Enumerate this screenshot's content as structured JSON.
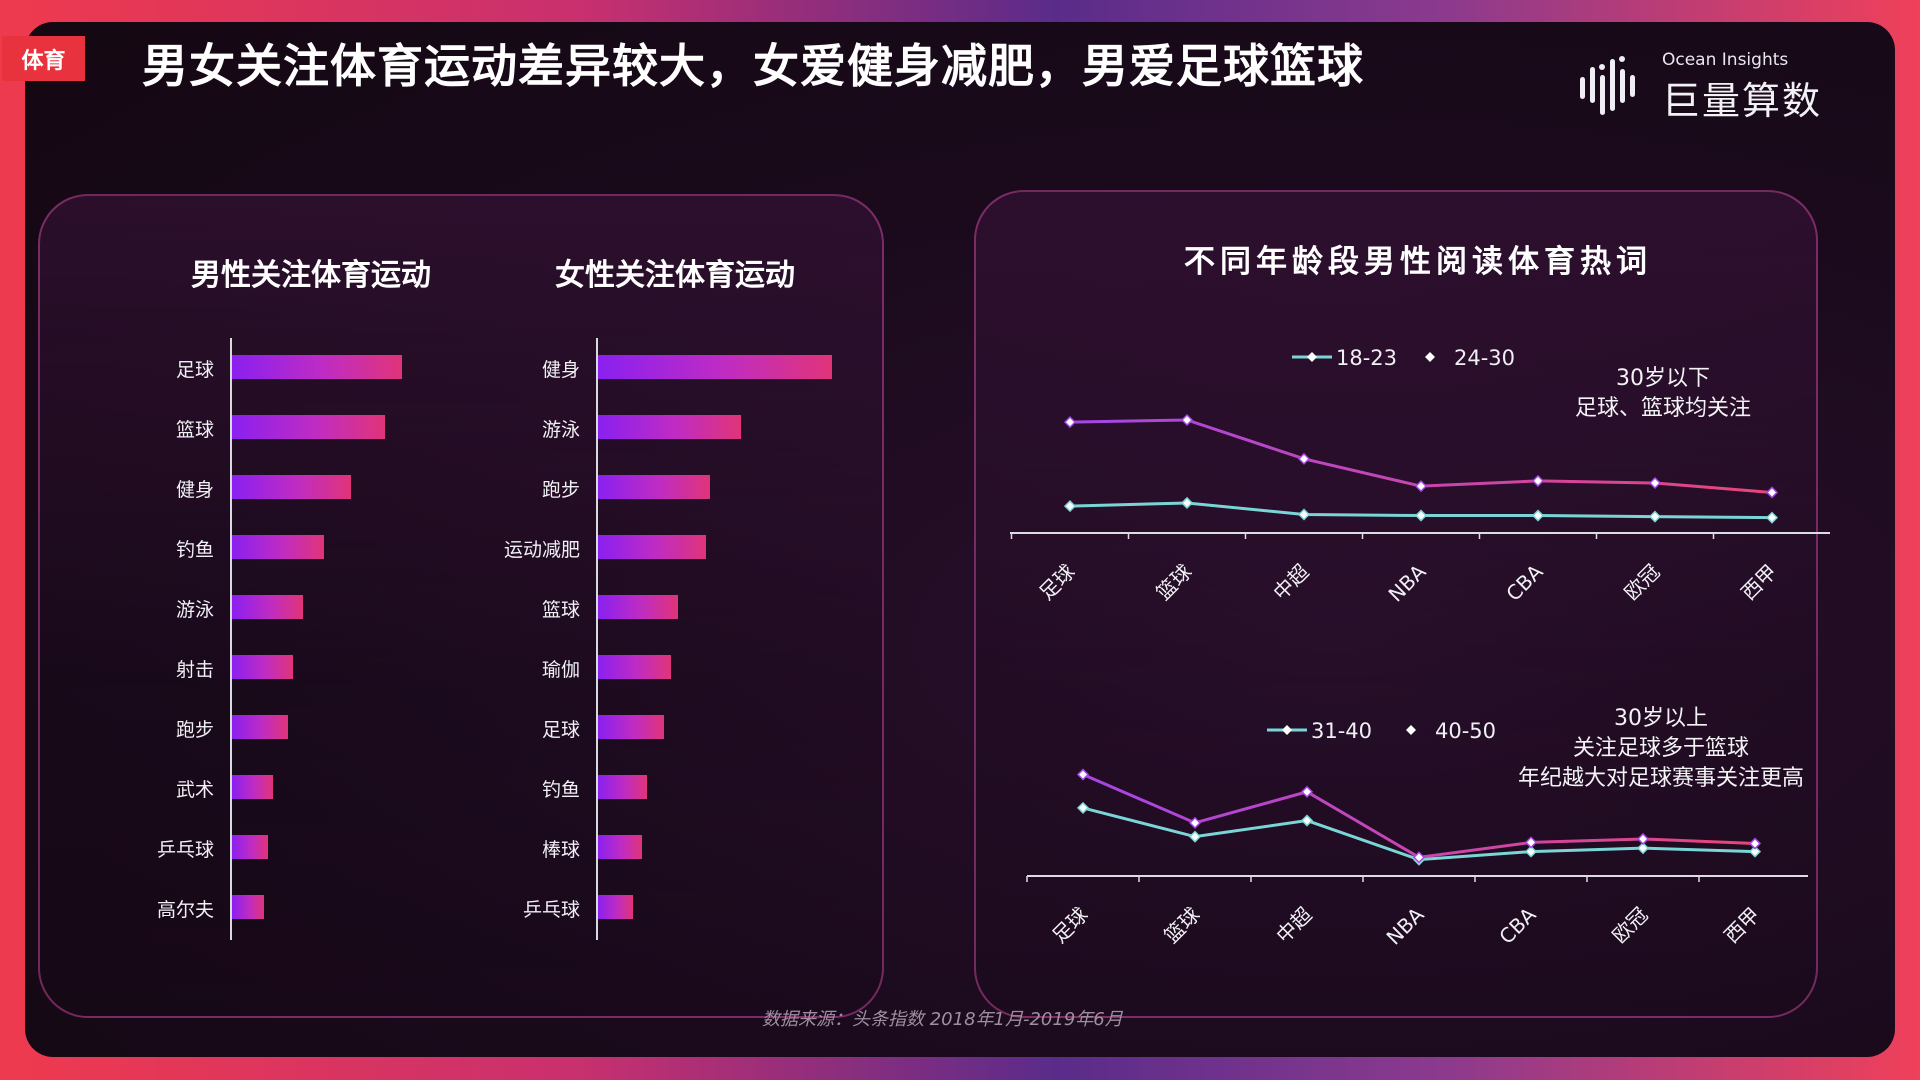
{
  "tag": "体育",
  "title": "男女关注体育运动差异较大，女爱健身减肥，男爱足球篮球",
  "logo": {
    "en": "Ocean Insights",
    "cn": "巨量算数"
  },
  "source": "数据来源：头条指数  2018年1月-2019年6月",
  "colors": {
    "teal": "#7ad6d6",
    "purple": "#a646e6",
    "pink": "#e8457a",
    "bar_start": "#8a20f0",
    "bar_end": "#e03478"
  },
  "chart_data": [
    {
      "type": "bar",
      "title": "男性关注体育运动",
      "orientation": "horizontal",
      "categories": [
        "足球",
        "篮球",
        "健身",
        "钓鱼",
        "游泳",
        "射击",
        "跑步",
        "武术",
        "乒乓球",
        "高尔夫"
      ],
      "values": [
        100,
        90,
        70,
        54,
        42,
        36,
        33,
        24,
        21,
        19
      ]
    },
    {
      "type": "bar",
      "title": "女性关注体育运动",
      "orientation": "horizontal",
      "categories": [
        "健身",
        "游泳",
        "跑步",
        "运动减肥",
        "篮球",
        "瑜伽",
        "足球",
        "钓鱼",
        "棒球",
        "乒乓球"
      ],
      "values": [
        100,
        61,
        48,
        46,
        34,
        31,
        28,
        21,
        19,
        15
      ]
    },
    {
      "type": "line",
      "title": "不同年龄段男性阅读体育热词",
      "categories": [
        "足球",
        "篮球",
        "中超",
        "NBA",
        "CBA",
        "欧冠",
        "西甲"
      ],
      "ylim": [
        0,
        100
      ],
      "series": [
        {
          "name": "18-23",
          "color": "#7ad6d6",
          "values": [
            18,
            21,
            10,
            9,
            9,
            8,
            7
          ]
        },
        {
          "name": "24-30",
          "color": "gradient-purple-pink",
          "values": [
            98,
            100,
            63,
            37,
            42,
            40,
            31
          ]
        }
      ],
      "annotation": [
        "30岁以下",
        "足球、篮球均关注"
      ]
    },
    {
      "type": "line",
      "categories": [
        "足球",
        "篮球",
        "中超",
        "NBA",
        "CBA",
        "欧冠",
        "西甲"
      ],
      "ylim": [
        0,
        100
      ],
      "series": [
        {
          "name": "31-40",
          "color": "#7ad6d6",
          "values": [
            54,
            29,
            43,
            9,
            16,
            19,
            16
          ]
        },
        {
          "name": "40-50",
          "color": "gradient-purple-pink",
          "values": [
            83,
            41,
            68,
            11,
            24,
            27,
            23
          ]
        }
      ],
      "annotation": [
        "30岁以上",
        "关注足球多于篮球",
        "年纪越大对足球赛事关注更高"
      ]
    }
  ]
}
